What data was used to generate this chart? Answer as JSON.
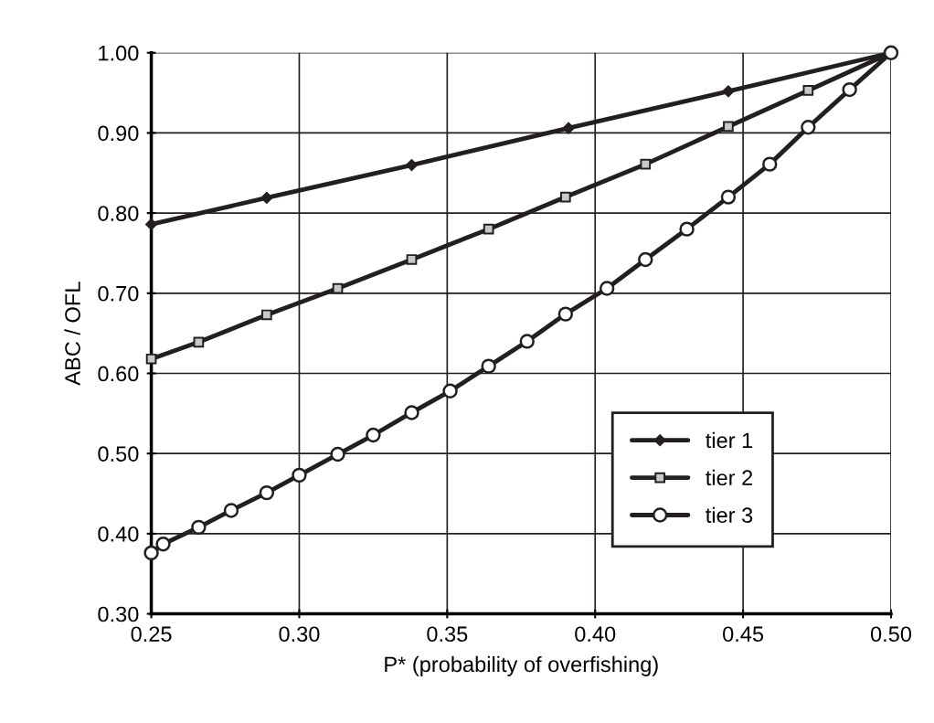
{
  "chart_data": {
    "type": "line",
    "xlabel": "P* (probability of overfishing)",
    "ylabel": "ABC / OFL",
    "xlim": [
      0.25,
      0.5
    ],
    "xticks": [
      {
        "value": 0.25,
        "label": "0.25"
      },
      {
        "value": 0.3,
        "label": "0.30"
      },
      {
        "value": 0.35,
        "label": "0.35"
      },
      {
        "value": 0.4,
        "label": "0.40"
      },
      {
        "value": 0.45,
        "label": "0.45"
      },
      {
        "value": 0.5,
        "label": "0.50"
      }
    ],
    "ylim": [
      0.3,
      1.0
    ],
    "yticks": [
      {
        "value": 0.3,
        "label": "0.30"
      },
      {
        "value": 0.4,
        "label": "0.40"
      },
      {
        "value": 0.5,
        "label": "0.50"
      },
      {
        "value": 0.6,
        "label": "0.60"
      },
      {
        "value": 0.7,
        "label": "0.70"
      },
      {
        "value": 0.8,
        "label": "0.80"
      },
      {
        "value": 0.9,
        "label": "0.90"
      },
      {
        "value": 1.0,
        "label": "1.00"
      }
    ],
    "grid": true,
    "legend": "bottom right",
    "series": [
      {
        "name": "tier 1",
        "color": "#231f20",
        "marker": "diamond",
        "x": [
          0.25,
          0.289,
          0.338,
          0.391,
          0.445,
          0.5
        ],
        "values": [
          0.786,
          0.819,
          0.86,
          0.906,
          0.952,
          1.0
        ]
      },
      {
        "name": "tier 2",
        "color": "#231f20",
        "marker": "square",
        "x": [
          0.25,
          0.266,
          0.289,
          0.313,
          0.338,
          0.364,
          0.39,
          0.417,
          0.445,
          0.472,
          0.5
        ],
        "values": [
          0.618,
          0.639,
          0.673,
          0.706,
          0.742,
          0.78,
          0.82,
          0.861,
          0.908,
          0.953,
          1.0
        ]
      },
      {
        "name": "tier 3",
        "color": "#231f20",
        "marker": "circle",
        "x": [
          0.25,
          0.254,
          0.266,
          0.277,
          0.289,
          0.3,
          0.313,
          0.325,
          0.338,
          0.351,
          0.364,
          0.377,
          0.39,
          0.404,
          0.417,
          0.431,
          0.445,
          0.459,
          0.472,
          0.486,
          0.5
        ],
        "values": [
          0.376,
          0.387,
          0.408,
          0.429,
          0.451,
          0.473,
          0.499,
          0.523,
          0.551,
          0.578,
          0.609,
          0.64,
          0.674,
          0.706,
          0.742,
          0.78,
          0.82,
          0.861,
          0.907,
          0.954,
          1.0
        ]
      }
    ]
  }
}
